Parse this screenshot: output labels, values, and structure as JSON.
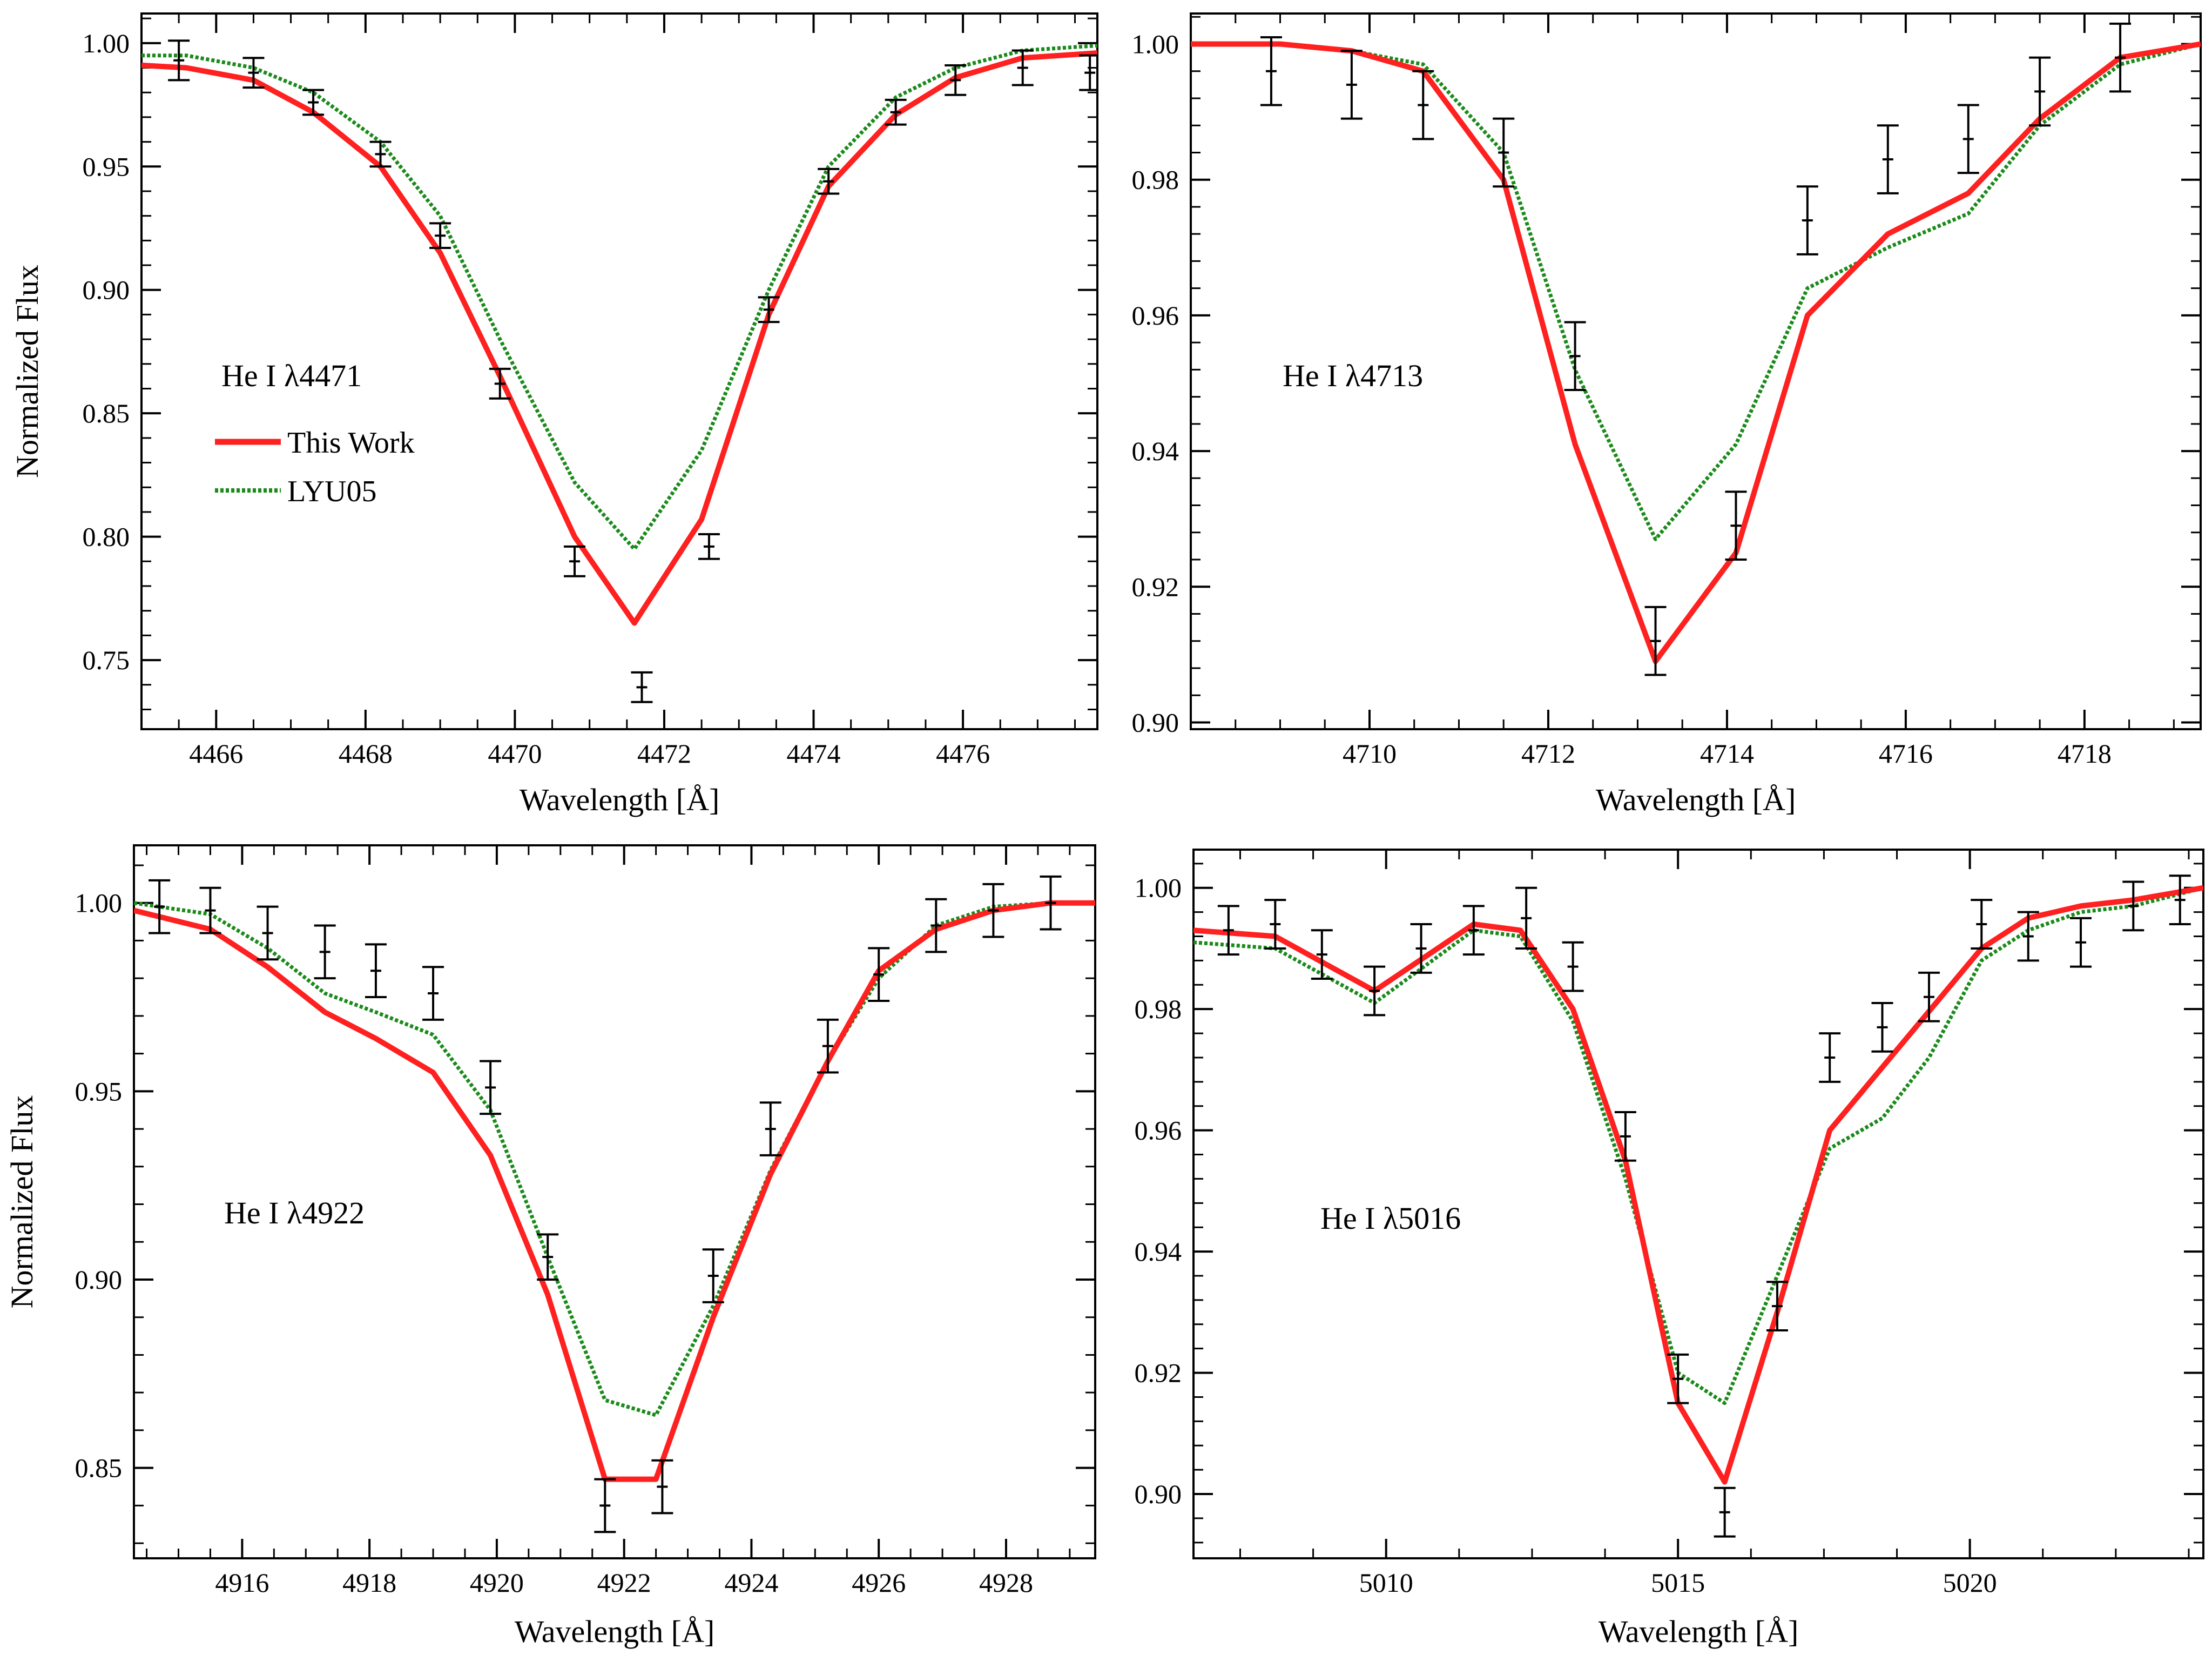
{
  "legend": {
    "entries": [
      {
        "label": "This Work",
        "color": "#ff2020",
        "style": "solid"
      },
      {
        "label": "LYU05",
        "color": "#1a8a1a",
        "style": "dashed"
      }
    ]
  },
  "chart_data": [
    {
      "type": "line",
      "panel_label": "He I λ4471",
      "xlabel": "Wavelength [Å]",
      "ylabel": "Normalized Flux",
      "xlim": [
        4465.0,
        4477.8
      ],
      "ylim": [
        0.722,
        1.012
      ],
      "xticks": [
        4466,
        4468,
        4470,
        4472,
        4474,
        4476
      ],
      "xtick_labels": [
        "4466",
        "4468",
        "4470",
        "4472",
        "4474",
        "4476"
      ],
      "yticks": [
        0.75,
        0.8,
        0.85,
        0.9,
        0.95,
        1.0
      ],
      "ytick_labels": [
        "0.75",
        "0.80",
        "0.85",
        "0.90",
        "0.95",
        "1.00"
      ],
      "series": [
        {
          "name": "This Work",
          "color": "#ff2020",
          "style": "solid",
          "x": [
            4465.0,
            4465.6,
            4466.5,
            4467.3,
            4468.2,
            4469.0,
            4469.8,
            4470.8,
            4471.6,
            4472.5,
            4473.4,
            4474.2,
            4475.1,
            4475.9,
            4476.8,
            4477.8
          ],
          "y": [
            0.991,
            0.99,
            0.985,
            0.972,
            0.95,
            0.915,
            0.865,
            0.8,
            0.765,
            0.807,
            0.89,
            0.942,
            0.971,
            0.986,
            0.994,
            0.996
          ]
        },
        {
          "name": "LYU05",
          "color": "#1a8a1a",
          "style": "dashed",
          "x": [
            4465.0,
            4465.6,
            4466.5,
            4467.3,
            4468.2,
            4469.0,
            4469.8,
            4470.8,
            4471.6,
            4472.5,
            4473.4,
            4474.2,
            4475.1,
            4475.9,
            4476.8,
            4477.8
          ],
          "y": [
            0.995,
            0.995,
            0.99,
            0.98,
            0.96,
            0.93,
            0.88,
            0.822,
            0.795,
            0.835,
            0.9,
            0.95,
            0.978,
            0.99,
            0.997,
            0.999
          ]
        }
      ],
      "observations": {
        "x": [
          4465.5,
          4466.5,
          4467.3,
          4468.2,
          4469.0,
          4469.8,
          4470.8,
          4471.7,
          4472.6,
          4473.4,
          4474.2,
          4475.1,
          4475.9,
          4476.8,
          4477.7
        ],
        "y": [
          0.993,
          0.988,
          0.976,
          0.955,
          0.922,
          0.862,
          0.79,
          0.739,
          0.796,
          0.892,
          0.944,
          0.972,
          0.985,
          0.99,
          0.988
        ],
        "err": [
          0.008,
          0.006,
          0.005,
          0.005,
          0.005,
          0.006,
          0.006,
          0.006,
          0.005,
          0.005,
          0.005,
          0.005,
          0.006,
          0.007,
          0.007
        ]
      }
    },
    {
      "type": "line",
      "panel_label": "He I λ4713",
      "xlabel": "Wavelength [Å]",
      "ylabel": "",
      "xlim": [
        4708.0,
        4719.3
      ],
      "ylim": [
        0.899,
        1.0045
      ],
      "xticks": [
        4710,
        4712,
        4714,
        4716,
        4718
      ],
      "xtick_labels": [
        "4710",
        "4712",
        "4714",
        "4716",
        "4718"
      ],
      "yticks": [
        0.9,
        0.92,
        0.94,
        0.96,
        0.98,
        1.0
      ],
      "ytick_labels": [
        "0.90",
        "0.92",
        "0.94",
        "0.96",
        "0.98",
        "1.00"
      ],
      "series": [
        {
          "name": "This Work",
          "color": "#ff2020",
          "style": "solid",
          "x": [
            4708.0,
            4709.0,
            4709.8,
            4710.6,
            4711.5,
            4712.3,
            4713.2,
            4714.1,
            4714.9,
            4715.8,
            4716.7,
            4717.5,
            4718.4,
            4719.3
          ],
          "y": [
            1.0,
            1.0,
            0.999,
            0.996,
            0.98,
            0.941,
            0.909,
            0.925,
            0.96,
            0.972,
            0.978,
            0.989,
            0.998,
            1.0
          ]
        },
        {
          "name": "LYU05",
          "color": "#1a8a1a",
          "style": "dashed",
          "x": [
            4708.0,
            4709.0,
            4709.8,
            4710.6,
            4711.5,
            4712.3,
            4713.2,
            4714.1,
            4714.9,
            4715.8,
            4716.7,
            4717.5,
            4718.4,
            4719.3
          ],
          "y": [
            1.0,
            1.0,
            0.999,
            0.997,
            0.984,
            0.952,
            0.927,
            0.941,
            0.964,
            0.97,
            0.975,
            0.988,
            0.997,
            1.0
          ]
        }
      ],
      "observations": {
        "x": [
          4708.9,
          4709.8,
          4710.6,
          4711.5,
          4712.3,
          4713.2,
          4714.1,
          4714.9,
          4715.8,
          4716.7,
          4717.5,
          4718.4
        ],
        "y": [
          0.996,
          0.994,
          0.991,
          0.984,
          0.954,
          0.912,
          0.929,
          0.974,
          0.983,
          0.986,
          0.993,
          0.998
        ],
        "err": [
          0.005,
          0.005,
          0.005,
          0.005,
          0.005,
          0.005,
          0.005,
          0.005,
          0.005,
          0.005,
          0.005,
          0.005
        ]
      }
    },
    {
      "type": "line",
      "panel_label": "He I λ4922",
      "xlabel": "Wavelength [Å]",
      "ylabel": "Normalized Flux",
      "xlim": [
        4914.3,
        4929.4
      ],
      "ylim": [
        0.826,
        1.0153
      ],
      "xticks": [
        4916,
        4918,
        4920,
        4922,
        4924,
        4926,
        4928
      ],
      "xtick_labels": [
        "4916",
        "4918",
        "4920",
        "4922",
        "4924",
        "4926",
        "4928"
      ],
      "yticks": [
        0.85,
        0.9,
        0.95,
        1.0
      ],
      "ytick_labels": [
        "0.85",
        "0.90",
        "0.95",
        "1.00"
      ],
      "series": [
        {
          "name": "This Work",
          "color": "#ff2020",
          "style": "solid",
          "x": [
            4914.3,
            4915.5,
            4916.4,
            4917.3,
            4918.1,
            4919.0,
            4919.9,
            4920.8,
            4921.7,
            4922.5,
            4923.4,
            4924.3,
            4925.2,
            4926.0,
            4926.9,
            4927.8,
            4928.7,
            4929.4
          ],
          "y": [
            0.998,
            0.993,
            0.983,
            0.971,
            0.964,
            0.955,
            0.933,
            0.896,
            0.847,
            0.847,
            0.89,
            0.928,
            0.958,
            0.982,
            0.993,
            0.998,
            1.0,
            1.0
          ]
        },
        {
          "name": "LYU05",
          "color": "#1a8a1a",
          "style": "dashed",
          "x": [
            4914.3,
            4915.5,
            4916.4,
            4917.3,
            4918.1,
            4919.0,
            4919.9,
            4920.8,
            4921.7,
            4922.5,
            4923.4,
            4924.3,
            4925.2,
            4926.0,
            4926.9,
            4927.8,
            4928.7,
            4929.4
          ],
          "y": [
            1.0,
            0.997,
            0.988,
            0.976,
            0.971,
            0.965,
            0.945,
            0.906,
            0.868,
            0.864,
            0.893,
            0.929,
            0.958,
            0.98,
            0.994,
            0.999,
            1.0,
            1.0
          ]
        }
      ],
      "observations": {
        "x": [
          4914.7,
          4915.5,
          4916.4,
          4917.3,
          4918.1,
          4919.0,
          4919.9,
          4920.8,
          4921.7,
          4922.6,
          4923.4,
          4924.3,
          4925.2,
          4926.0,
          4926.9,
          4927.8,
          4928.7
        ],
        "y": [
          0.999,
          0.998,
          0.992,
          0.987,
          0.982,
          0.976,
          0.951,
          0.906,
          0.84,
          0.845,
          0.901,
          0.94,
          0.962,
          0.981,
          0.994,
          0.998,
          1.0
        ],
        "err": [
          0.007,
          0.006,
          0.007,
          0.007,
          0.007,
          0.007,
          0.007,
          0.006,
          0.007,
          0.007,
          0.007,
          0.007,
          0.007,
          0.007,
          0.007,
          0.007,
          0.007
        ]
      }
    },
    {
      "type": "line",
      "panel_label": "He I λ5016",
      "xlabel": "Wavelength [Å]",
      "ylabel": "",
      "xlim": [
        5006.7,
        5024.0
      ],
      "ylim": [
        0.8894,
        1.0063
      ],
      "xticks": [
        5010,
        5015,
        5020
      ],
      "xtick_labels": [
        "5010",
        "5015",
        "5020"
      ],
      "yticks": [
        0.9,
        0.92,
        0.94,
        0.96,
        0.98,
        1.0
      ],
      "ytick_labels": [
        "0.90",
        "0.92",
        "0.94",
        "0.96",
        "0.98",
        "1.00"
      ],
      "series": [
        {
          "name": "This Work",
          "color": "#ff2020",
          "style": "solid",
          "x": [
            5006.7,
            5008.1,
            5009.8,
            5011.5,
            5012.3,
            5013.2,
            5014.1,
            5015.0,
            5015.8,
            5016.7,
            5017.6,
            5020.2,
            5021.0,
            5021.9,
            5022.8,
            5024.0
          ],
          "y": [
            0.993,
            0.992,
            0.983,
            0.994,
            0.993,
            0.98,
            0.955,
            0.915,
            0.902,
            0.93,
            0.96,
            0.99,
            0.995,
            0.997,
            0.998,
            1.0
          ]
        },
        {
          "name": "LYU05",
          "color": "#1a8a1a",
          "style": "dashed",
          "x": [
            5006.7,
            5008.1,
            5009.8,
            5011.5,
            5012.3,
            5013.2,
            5014.1,
            5015.0,
            5015.8,
            5016.7,
            5017.6,
            5018.5,
            5019.3,
            5020.2,
            5021.0,
            5021.9,
            5022.8,
            5024.0
          ],
          "y": [
            0.991,
            0.99,
            0.981,
            0.993,
            0.992,
            0.978,
            0.952,
            0.92,
            0.915,
            0.936,
            0.957,
            0.962,
            0.972,
            0.988,
            0.993,
            0.996,
            0.997,
            1.0
          ]
        }
      ],
      "observations": {
        "x": [
          5007.3,
          5008.1,
          5008.9,
          5009.8,
          5010.6,
          5011.5,
          5012.4,
          5013.2,
          5014.1,
          5015.0,
          5015.8,
          5016.7,
          5017.6,
          5018.5,
          5019.3,
          5020.2,
          5021.0,
          5021.9,
          5022.8,
          5023.6
        ],
        "y": [
          0.993,
          0.994,
          0.989,
          0.983,
          0.99,
          0.993,
          0.995,
          0.987,
          0.959,
          0.919,
          0.897,
          0.931,
          0.972,
          0.977,
          0.982,
          0.994,
          0.992,
          0.991,
          0.997,
          0.998
        ],
        "err": [
          0.004,
          0.004,
          0.004,
          0.004,
          0.004,
          0.004,
          0.005,
          0.004,
          0.004,
          0.004,
          0.004,
          0.004,
          0.004,
          0.004,
          0.004,
          0.004,
          0.004,
          0.004,
          0.004,
          0.004
        ]
      }
    }
  ]
}
